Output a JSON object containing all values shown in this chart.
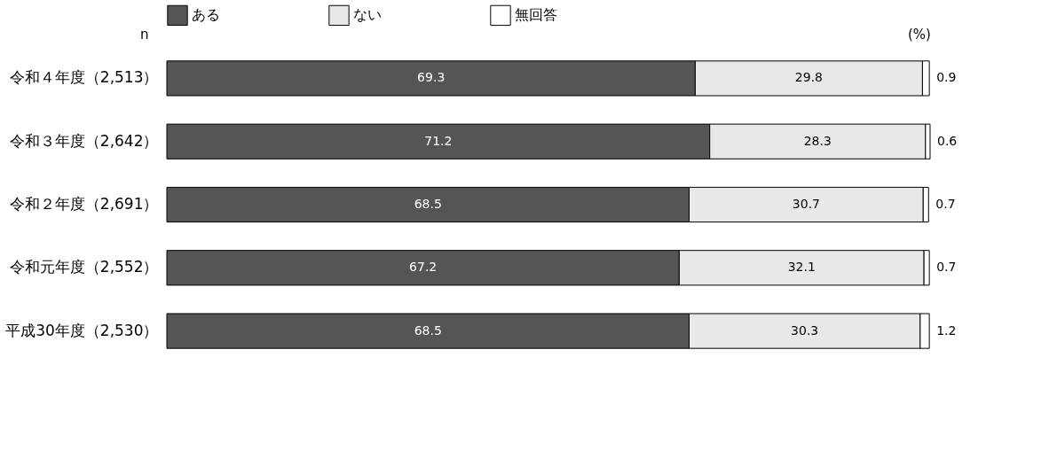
{
  "chart_data": {
    "type": "bar",
    "orientation": "horizontal",
    "stacked": true,
    "data_labels": true,
    "legend": "top",
    "grid": false,
    "categories": [
      "令和４年度（2,513）",
      "令和３年度（2,642）",
      "令和２年度（2,691）",
      "令和元年度（2,552）",
      "平成30年度（2,530）"
    ],
    "series": [
      {
        "name": "ある",
        "color": "#555555",
        "values": [
          69.3,
          71.2,
          68.5,
          67.2,
          68.5
        ]
      },
      {
        "name": "ない",
        "color": "#e8e8e8",
        "values": [
          29.8,
          28.3,
          30.7,
          32.1,
          30.3
        ]
      },
      {
        "name": "無回答",
        "color": "#ffffff",
        "values": [
          0.9,
          0.6,
          0.7,
          0.7,
          1.2
        ]
      }
    ],
    "annotations": [
      "n",
      "(%)"
    ]
  }
}
